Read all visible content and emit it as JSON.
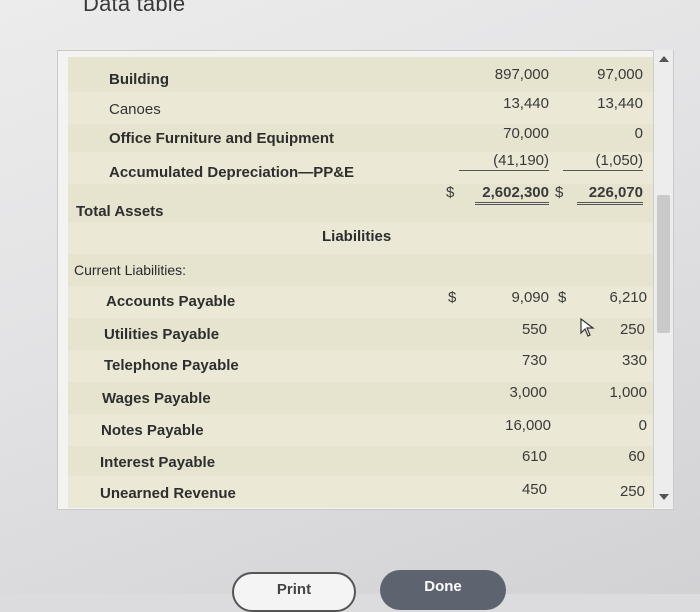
{
  "dialog": {
    "title": "Data table"
  },
  "assets": [
    {
      "label": "Building",
      "col1": "897,000",
      "col2": "97,000"
    },
    {
      "label": "Canoes",
      "col1": "13,440",
      "col2": "13,440"
    },
    {
      "label": "Office Furniture and Equipment",
      "col1": "70,000",
      "col2": "0"
    },
    {
      "label": "Accumulated Depreciation—PP&E",
      "col1": "(41,190)",
      "col2": "(1,050)"
    }
  ],
  "total_assets": {
    "label": "Total Assets",
    "dollar1": "$",
    "col1": "2,602,300",
    "dollar2": "$",
    "col2": "226,070"
  },
  "liabilities": {
    "heading": "Liabilities",
    "current_label": "Current Liabilities:",
    "dollar1": "$",
    "dollar2": "$",
    "items": [
      {
        "label": "Accounts Payable",
        "col1": "9,090",
        "col2": "6,210"
      },
      {
        "label": "Utilities Payable",
        "col1": "550",
        "col2": "250"
      },
      {
        "label": "Telephone Payable",
        "col1": "730",
        "col2": "330"
      },
      {
        "label": "Wages Payable",
        "col1": "3,000",
        "col2": "1,000"
      },
      {
        "label": "Notes Payable",
        "col1": "16,000",
        "col2": "0"
      },
      {
        "label": "Interest Payable",
        "col1": "610",
        "col2": "60"
      },
      {
        "label": "Unearned Revenue",
        "col1": "450",
        "col2": "250"
      }
    ]
  },
  "buttons": {
    "print": "Print",
    "done": "Done"
  },
  "icons": {
    "cursor": "mouse-pointer-icon",
    "scroll_up": "scroll-up-arrow-icon",
    "scroll_down": "scroll-down-arrow-icon"
  }
}
